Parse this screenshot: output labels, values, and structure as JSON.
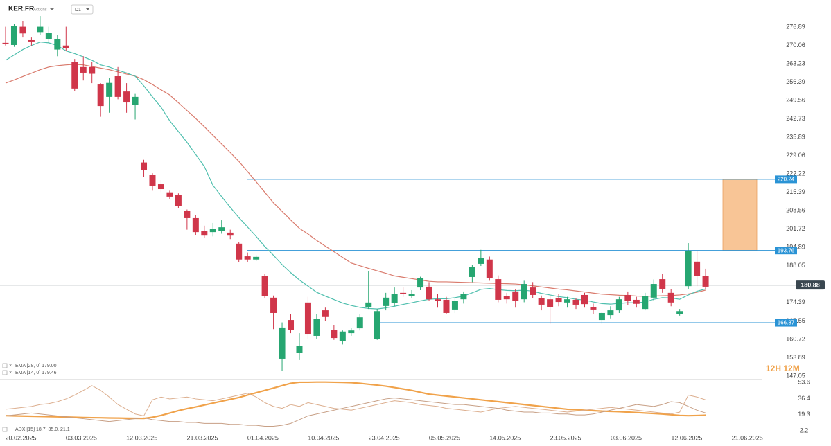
{
  "header": {
    "symbol": "KER.FR",
    "kind": "Actions",
    "timeframe": "D1"
  },
  "chart_data": [
    {
      "type": "candlestick",
      "ylim": [
        145.76,
        286.94
      ],
      "yticks": [
        276.89,
        270.06,
        263.23,
        256.39,
        249.56,
        242.73,
        235.89,
        229.06,
        222.22,
        215.39,
        208.56,
        201.72,
        194.89,
        188.05,
        174.39,
        167.55,
        160.72,
        153.89,
        147.05
      ],
      "up_color": "#26a671",
      "down_color": "#d0364a",
      "open": [
        271,
        270.2,
        277,
        272,
        275,
        272.5,
        268.5,
        270,
        264,
        262,
        262,
        255.5,
        250.9,
        258.6,
        252.9,
        247.8,
        226.5,
        222,
        218.4,
        215.4,
        214.3,
        208.6,
        205.8,
        201.1,
        200.6,
        201.1,
        200.4,
        196.3,
        191.6,
        190.4,
        184.4,
        176.2,
        153.5,
        167.9,
        155.6,
        174.4,
        162,
        171.5,
        164.3,
        160,
        163,
        164.8,
        172.6,
        160.9,
        173.1,
        174.1,
        178,
        176.9,
        180,
        180.3,
        175.6,
        175.4,
        171.8,
        175.6,
        183.9,
        188.8,
        190.4,
        183.1,
        176.7,
        178.5,
        175.6,
        180,
        176,
        175.6,
        176,
        174.4,
        175.4,
        177.2,
        172.6,
        167.9,
        169.7,
        171.5,
        177.2,
        175.4,
        172,
        176.2,
        183.1,
        178,
        170,
        180.5,
        189.6,
        184.4
      ],
      "high": [
        277,
        278,
        279,
        273,
        281,
        277,
        274,
        277,
        265,
        266,
        264,
        256,
        258,
        262,
        256,
        252,
        227.5,
        222.5,
        220,
        216,
        215,
        209,
        207,
        203,
        204,
        205,
        201.5,
        197,
        193,
        192,
        185,
        177,
        167,
        170,
        163,
        176.5,
        170,
        172.5,
        166,
        164,
        165,
        170,
        186,
        172,
        178,
        180,
        180,
        179,
        184,
        182,
        177.5,
        176.5,
        176,
        178.5,
        188.5,
        194,
        191.5,
        184.5,
        178,
        179.5,
        182.5,
        182,
        177,
        177,
        177.5,
        176.5,
        176,
        178,
        174,
        171,
        173,
        176.5,
        178.5,
        176.5,
        178,
        183,
        185,
        179.5,
        172,
        196.5,
        193.5,
        187
      ],
      "low": [
        270,
        269.5,
        273,
        270,
        274,
        271,
        266,
        268,
        253,
        257,
        256,
        243.5,
        245,
        250,
        245,
        242.5,
        221,
        216,
        215.5,
        213,
        209.5,
        201.5,
        199.5,
        198.5,
        199,
        200,
        198,
        189.5,
        189.5,
        189.8,
        176,
        164.5,
        149,
        163,
        153,
        161,
        160.8,
        167.5,
        160.5,
        158.8,
        162,
        164,
        172,
        160.5,
        171.5,
        173,
        176.5,
        176,
        179,
        175,
        172.5,
        170,
        170.5,
        174,
        182,
        188,
        182.5,
        174.5,
        174,
        172.5,
        174.5,
        176,
        171.5,
        166.5,
        173,
        172.5,
        172,
        172.5,
        170,
        166.5,
        168.5,
        170.5,
        173.5,
        172.5,
        171.5,
        175,
        178,
        173,
        169.5,
        179.5,
        180.5,
        179.5
      ],
      "close": [
        270.5,
        277.4,
        274.5,
        271.5,
        277,
        274.7,
        272.5,
        269,
        254,
        259.9,
        259.5,
        247.5,
        256.1,
        250.9,
        248.8,
        250.9,
        223.6,
        217.9,
        216.6,
        213.8,
        210.2,
        205.8,
        200.6,
        199.3,
        201.9,
        202.4,
        199.3,
        190.4,
        190.4,
        191.4,
        176.7,
        170.5,
        165.1,
        164.3,
        158.2,
        162.5,
        168.4,
        169,
        161.2,
        163.6,
        164,
        168.9,
        174.4,
        171.2,
        176.2,
        177.5,
        177.5,
        177.5,
        183.4,
        175.6,
        174.9,
        170.5,
        175.1,
        177.5,
        187.5,
        191.1,
        183.4,
        175.4,
        175.6,
        175.1,
        181.3,
        177.2,
        173.6,
        172.6,
        174.6,
        175.6,
        173.6,
        173.8,
        171.8,
        170.5,
        171.5,
        175.6,
        174.9,
        173.9,
        176.7,
        181.3,
        179.3,
        174.4,
        171.2,
        193.7,
        184.4,
        180.3
      ],
      "series": [
        {
          "name": "EMA [28, 0] 179.00",
          "color": "#d97a6c",
          "values": [
            256,
            257.2,
            258.5,
            259.7,
            261,
            262,
            262.5,
            262.8,
            263,
            262.8,
            262.2,
            261.6,
            261,
            260.2,
            259.4,
            258.6,
            257.3,
            255.5,
            253.5,
            251.6,
            248.7,
            245.8,
            242.9,
            239.8,
            236.6,
            233.4,
            230.2,
            226.9,
            223.1,
            219.3,
            215.4,
            211.5,
            208.3,
            205.1,
            202,
            199.9,
            197.5,
            195.4,
            193.3,
            191.2,
            189.1,
            188.1,
            187.1,
            186.2,
            185.3,
            184.3,
            183.8,
            183.3,
            182.8,
            182.3,
            182.1,
            182.1,
            182,
            181.9,
            181.8,
            181.7,
            181.6,
            181.5,
            181.4,
            181.3,
            181,
            180.6,
            180.2,
            179.8,
            179.4,
            179.1,
            178.7,
            178.3,
            177.9,
            177.5,
            177.3,
            177.1,
            177,
            176.8,
            176.7,
            176.8,
            176.9,
            177,
            177.2,
            177.6,
            178.2,
            179
          ]
        },
        {
          "name": "EMA [14, 0] 179.46",
          "color": "#4fbfae",
          "values": [
            264.5,
            266.5,
            268.5,
            270,
            271.3,
            271,
            270,
            268,
            267,
            265.8,
            264.5,
            262.8,
            262,
            260.8,
            259.8,
            258.6,
            255,
            250.9,
            247,
            242,
            238,
            234,
            229.5,
            225,
            218,
            213.8,
            209.8,
            206,
            202.5,
            199,
            195.2,
            192,
            188.5,
            185.5,
            182.8,
            180.5,
            178.2,
            176.8,
            175.5,
            174.2,
            173.3,
            172.6,
            172.2,
            172,
            172.4,
            173,
            173.7,
            174.3,
            175,
            175.6,
            175.8,
            175.8,
            176.2,
            176.8,
            178,
            179.3,
            179.6,
            179.2,
            178.9,
            178.8,
            179,
            178.6,
            177.8,
            177.2,
            176.6,
            176.2,
            175.6,
            175.3,
            174.6,
            174,
            173.8,
            174.1,
            174.3,
            174.3,
            174.6,
            175.6,
            176.2,
            176.1,
            175.6,
            177.2,
            178.6,
            179.46
          ]
        }
      ],
      "levels": [
        {
          "value": 220.24,
          "color": "#2a93d5"
        },
        {
          "value": 193.76,
          "color": "#2a93d5"
        },
        {
          "value": 166.87,
          "color": "#2a93d5"
        }
      ],
      "zone": {
        "color": "#f8c596"
      },
      "last_price": {
        "value": 180.88,
        "color": "#3a4750"
      },
      "x_labels": [
        "20.02.2025",
        "03.03.2025",
        "12.03.2025",
        "21.03.2025",
        "01.04.2025",
        "10.04.2025",
        "23.04.2025",
        "05.05.2025",
        "14.05.2025",
        "23.05.2025",
        "03.06.2025",
        "12.06.2025",
        "21.06.2025"
      ]
    },
    {
      "type": "line",
      "title": "ADX [15] 18.7, 35.0, 21.1",
      "ylim": [
        -2.2,
        56.5
      ],
      "yticks": [
        53.6,
        36.4,
        19.3,
        2.2
      ],
      "series": [
        {
          "color": "#f0a24a",
          "width": 2.2,
          "values": [
            18.2,
            18,
            17.8,
            17.6,
            17.4,
            17.2,
            17,
            16.8,
            16.5,
            16.3,
            16.1,
            16,
            15.8,
            15.7,
            15.5,
            15.4,
            15.3,
            16.5,
            18.5,
            21,
            23.5,
            25.6,
            27.5,
            29.5,
            31.5,
            33.5,
            35.5,
            37.5,
            40,
            42.5,
            45,
            47.5,
            50,
            52.5,
            53.6,
            53.6,
            53.8,
            53.8,
            53.6,
            53.5,
            53.2,
            52.5,
            51.5,
            50.6,
            49.5,
            48,
            46.5,
            45,
            43,
            41,
            40,
            39,
            38,
            37,
            36,
            35,
            34,
            33,
            32,
            31,
            30,
            29,
            28,
            27,
            26,
            25,
            24.5,
            24,
            23.5,
            23,
            22.7,
            22.5,
            22,
            21.5,
            21,
            20.5,
            20,
            19.2,
            18.5,
            18.2,
            18.4,
            18.7
          ]
        },
        {
          "color": "#dcae8e",
          "width": 1,
          "values": [
            25,
            26,
            27,
            28,
            30,
            31,
            33,
            36,
            40,
            45,
            50,
            45,
            38,
            30,
            25,
            20,
            18,
            35,
            38,
            36,
            37,
            38,
            36,
            35,
            34,
            36,
            38,
            40,
            42,
            38,
            32,
            28,
            26,
            30,
            28,
            32,
            30,
            28,
            26,
            25,
            24,
            26,
            28,
            30,
            32,
            34,
            33,
            32,
            30,
            29,
            28,
            26,
            25,
            24,
            23,
            22,
            24,
            26,
            27,
            28,
            27,
            26,
            25,
            24,
            23,
            22,
            23,
            24,
            25,
            26,
            27,
            26,
            25,
            24,
            23,
            22,
            21,
            20,
            22,
            40,
            38,
            35
          ]
        },
        {
          "color": "#c79f85",
          "width": 1,
          "values": [
            18,
            19,
            20,
            21,
            20,
            19,
            18,
            17,
            16,
            15,
            14,
            13,
            12,
            13,
            14,
            15,
            16,
            14,
            13,
            12,
            12,
            11,
            11,
            10,
            10,
            10,
            9,
            9,
            8,
            8,
            7,
            7,
            8,
            10,
            14,
            18,
            20,
            22,
            24,
            26,
            28,
            30,
            32,
            34,
            36,
            37,
            36,
            35,
            34,
            33,
            32,
            31,
            30,
            30,
            29,
            28,
            27,
            26,
            24,
            23,
            22,
            22,
            21,
            21,
            20,
            20,
            19,
            19,
            20,
            22,
            24,
            26,
            28,
            30,
            29,
            28,
            30,
            33,
            32,
            28,
            24,
            21.1
          ]
        }
      ]
    }
  ],
  "watermark": "12H 12M"
}
